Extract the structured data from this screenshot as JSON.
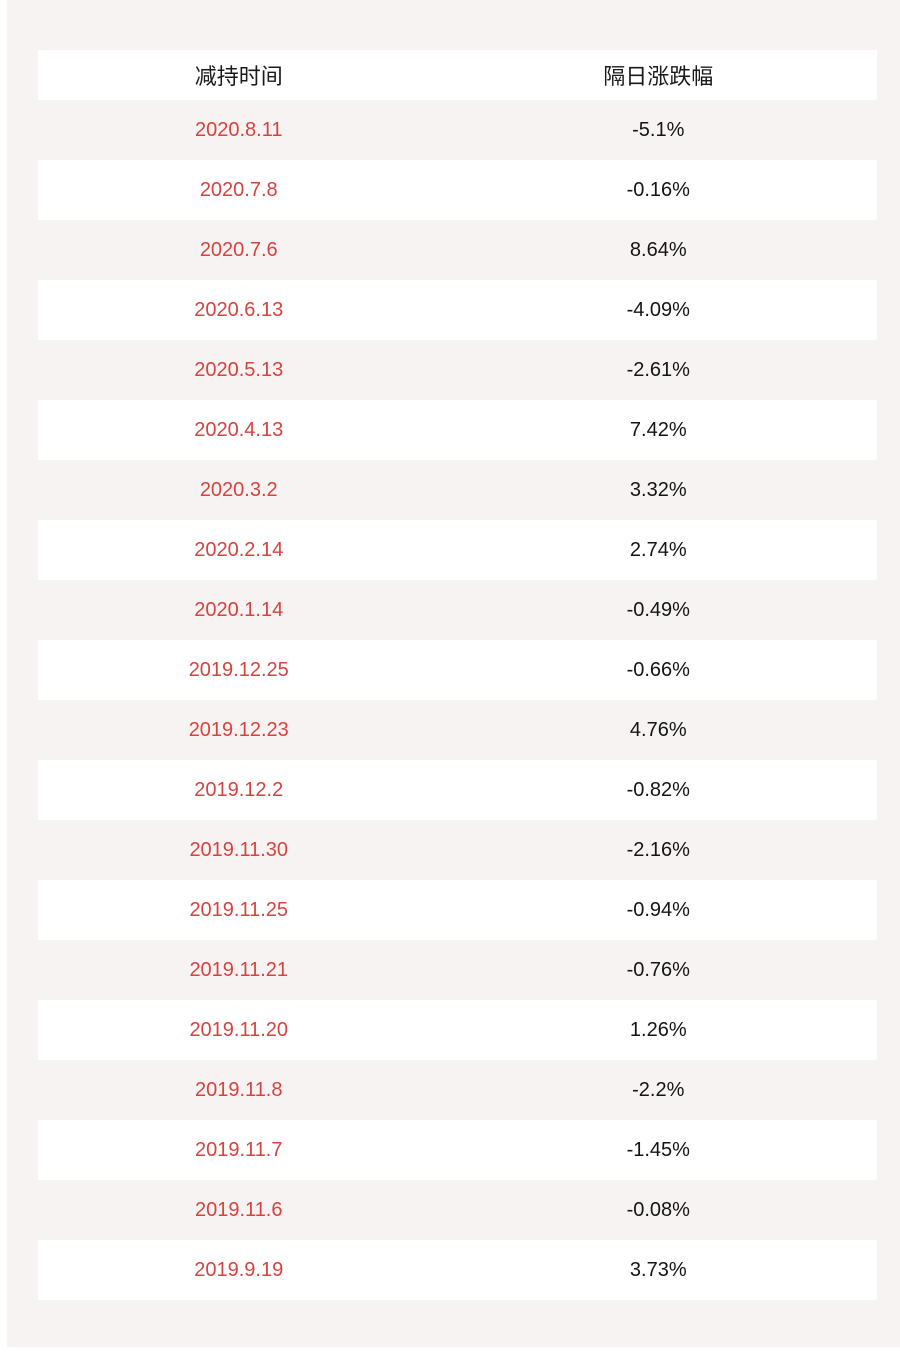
{
  "colors": {
    "page_bg": "#ffffff",
    "panel_bg": "#f8f3f3",
    "row_white": "#ffffff",
    "header_color": "#1a1a1a",
    "date_color": "#d8423e",
    "value_color": "#141414"
  },
  "chart_data": {
    "type": "table",
    "columns": [
      "减持时间",
      "隔日涨跌幅"
    ],
    "rows": [
      [
        "2020.8.11",
        "-5.1%"
      ],
      [
        "2020.7.8",
        "-0.16%"
      ],
      [
        "2020.7.6",
        "8.64%"
      ],
      [
        "2020.6.13",
        "-4.09%"
      ],
      [
        "2020.5.13",
        "-2.61%"
      ],
      [
        "2020.4.13",
        "7.42%"
      ],
      [
        "2020.3.2",
        "3.32%"
      ],
      [
        "2020.2.14",
        "2.74%"
      ],
      [
        "2020.1.14",
        "-0.49%"
      ],
      [
        "2019.12.25",
        "-0.66%"
      ],
      [
        "2019.12.23",
        "4.76%"
      ],
      [
        "2019.12.2",
        "-0.82%"
      ],
      [
        "2019.11.30",
        "-2.16%"
      ],
      [
        "2019.11.25",
        "-0.94%"
      ],
      [
        "2019.11.21",
        "-0.76%"
      ],
      [
        "2019.11.20",
        "1.26%"
      ],
      [
        "2019.11.8",
        "-2.2%"
      ],
      [
        "2019.11.7",
        "-1.45%"
      ],
      [
        "2019.11.6",
        "-0.08%"
      ],
      [
        "2019.9.19",
        "3.73%"
      ]
    ]
  }
}
